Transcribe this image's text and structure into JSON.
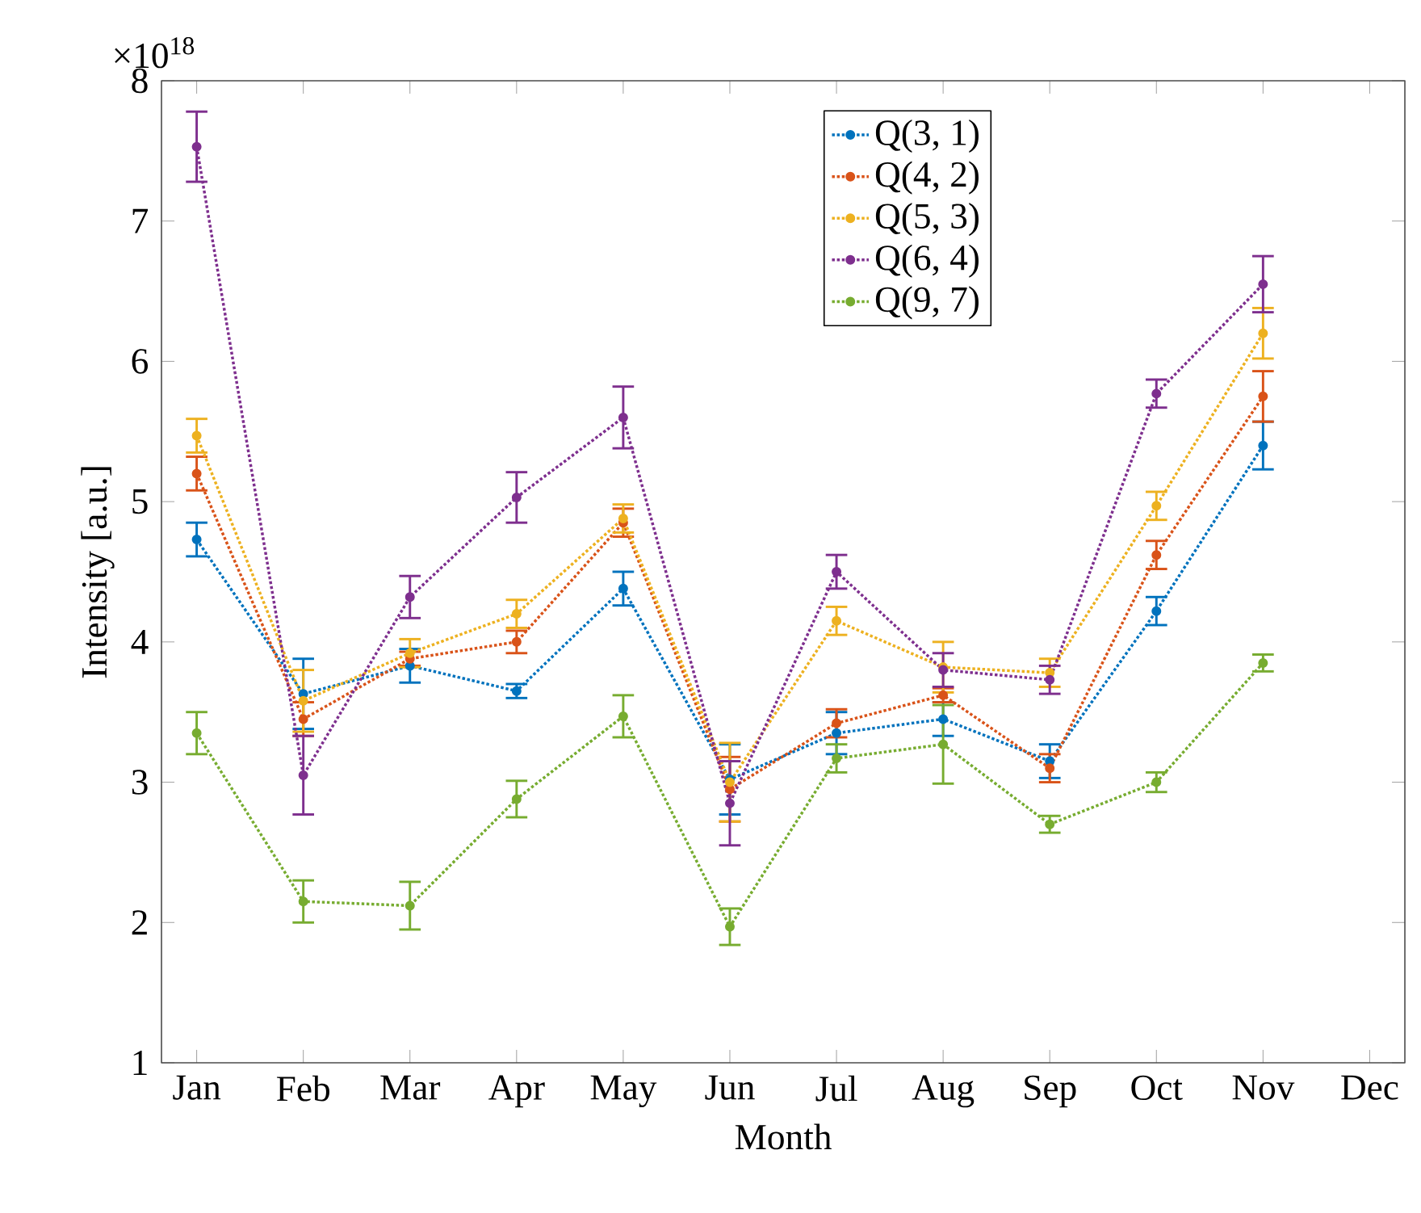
{
  "chart_data": {
    "type": "line",
    "xlabel": "Month",
    "ylabel": "Intensity [a.u.]",
    "annotations": [
      "×10$^{18}$"
    ],
    "categories": [
      "Jan",
      "Feb",
      "Mar",
      "Apr",
      "May",
      "Jun",
      "Jul",
      "Aug",
      "Sep",
      "Oct",
      "Nov",
      "Dec"
    ],
    "ylim": [
      1,
      8
    ],
    "yticks": [
      1,
      2,
      3,
      4,
      5,
      6,
      7,
      8
    ],
    "marker": "circle",
    "line_style": "dotted",
    "legend": "top",
    "series": [
      {
        "name": "Q(3, 1)",
        "color": "#0072bd",
        "values": [
          4.73,
          3.63,
          3.83,
          3.65,
          4.38,
          3.02,
          3.35,
          3.45,
          3.15,
          4.22,
          5.4,
          null
        ],
        "errors": [
          0.12,
          0.25,
          0.12,
          0.05,
          0.12,
          0.25,
          0.15,
          0.12,
          0.12,
          0.1,
          0.17,
          null
        ]
      },
      {
        "name": "Q(4, 2)",
        "color": "#d95319",
        "values": [
          5.2,
          3.45,
          3.88,
          4.0,
          4.85,
          2.95,
          3.42,
          3.62,
          3.1,
          4.62,
          5.75,
          null
        ],
        "errors": [
          0.12,
          0.12,
          0.05,
          0.08,
          0.1,
          0.23,
          0.1,
          0.05,
          0.1,
          0.1,
          0.18,
          null
        ]
      },
      {
        "name": "Q(5, 3)",
        "color": "#edb120",
        "values": [
          5.47,
          3.58,
          3.92,
          4.2,
          4.88,
          3.0,
          4.15,
          3.82,
          3.78,
          4.97,
          6.2,
          null
        ],
        "errors": [
          0.12,
          0.22,
          0.1,
          0.1,
          0.1,
          0.28,
          0.1,
          0.18,
          0.1,
          0.1,
          0.18,
          null
        ]
      },
      {
        "name": "Q(6, 4)",
        "color": "#7e2f8e",
        "values": [
          7.53,
          3.05,
          4.32,
          5.03,
          5.6,
          2.85,
          4.5,
          3.8,
          3.73,
          5.77,
          6.55,
          null
        ],
        "errors": [
          0.25,
          0.28,
          0.15,
          0.18,
          0.22,
          0.3,
          0.12,
          0.12,
          0.1,
          0.1,
          0.2,
          null
        ]
      },
      {
        "name": "Q(9, 7)",
        "color": "#77ac30",
        "values": [
          3.35,
          2.15,
          2.12,
          2.88,
          3.47,
          1.97,
          3.17,
          3.27,
          2.7,
          3.0,
          3.85,
          null
        ],
        "errors": [
          0.15,
          0.15,
          0.17,
          0.13,
          0.15,
          0.13,
          0.1,
          0.28,
          0.06,
          0.07,
          0.06,
          null
        ]
      }
    ]
  }
}
